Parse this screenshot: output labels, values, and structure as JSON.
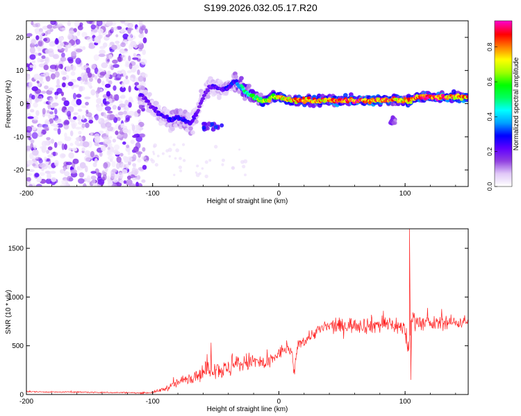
{
  "title": "S199.2026.032.05.17.R20",
  "chart_data": [
    {
      "type": "heatmap",
      "xlabel": "Height of straight line (km)",
      "ylabel": "Frequency (Hz)",
      "xlim": [
        -200,
        150
      ],
      "ylim": [
        -25,
        25
      ],
      "x_ticks": [
        -200,
        -100,
        0,
        100
      ],
      "x_tick_labels": [
        "-200",
        "-100",
        "0",
        "100"
      ],
      "y_ticks": [
        -20,
        -10,
        0,
        10,
        20
      ],
      "y_tick_labels": [
        "-20",
        "-10",
        "0",
        "10",
        "20"
      ],
      "colorbar": {
        "label": "Normalized spectral amplitude",
        "range": [
          0,
          0.95
        ],
        "ticks": [
          0.0,
          0.2,
          0.4,
          0.6,
          0.8
        ],
        "tick_labels": [
          "0.0",
          "0.2",
          "0.4",
          "0.6",
          "0.8"
        ],
        "colors": [
          "#ffffff",
          "#e0c8f8",
          "#9040e0",
          "#6000ff",
          "#0000ff",
          "#00a0ff",
          "#00ffff",
          "#00ff60",
          "#00ff00",
          "#a0ff00",
          "#ffff00",
          "#ff8000",
          "#ff0000",
          "#ff00c0"
        ]
      },
      "noise_region": {
        "x_range": [
          -200,
          -105
        ],
        "freq_range": [
          -25,
          25
        ],
        "amplitude": "low (0.05-0.2)"
      },
      "trace": {
        "x": [
          -110,
          -105,
          -100,
          -95,
          -90,
          -85,
          -80,
          -75,
          -70,
          -65,
          -60,
          -55,
          -50,
          -45,
          -40,
          -35,
          -30,
          -25,
          -20,
          -15,
          -10,
          -5,
          0,
          10,
          20,
          30,
          40,
          50,
          60,
          70,
          80,
          90,
          95,
          100,
          105,
          110,
          120,
          130,
          140,
          150
        ],
        "frequency": [
          3,
          1,
          -1,
          -3,
          -4,
          -5,
          -4,
          -5,
          -6,
          -3,
          2,
          5,
          5,
          4,
          5,
          7,
          5,
          3,
          2,
          1,
          1,
          2,
          2,
          1,
          1,
          1,
          1,
          1,
          1,
          1,
          1,
          1,
          1,
          1,
          1,
          2,
          2,
          2,
          2,
          2
        ],
        "amplitude": [
          0.25,
          0.2,
          0.2,
          0.22,
          0.25,
          0.28,
          0.28,
          0.3,
          0.25,
          0.22,
          0.2,
          0.22,
          0.25,
          0.22,
          0.28,
          0.3,
          0.45,
          0.55,
          0.6,
          0.65,
          0.7,
          0.75,
          0.75,
          0.8,
          0.85,
          0.85,
          0.85,
          0.9,
          0.9,
          0.88,
          0.88,
          0.85,
          0.8,
          0.8,
          0.85,
          0.9,
          0.9,
          0.9,
          0.85,
          0.85
        ]
      },
      "side_features": [
        {
          "x_range": [
            -60,
            -45
          ],
          "freq": [
            -8,
            -6
          ],
          "amplitude": 0.3
        },
        {
          "x_range": [
            88,
            92
          ],
          "freq": [
            -6,
            -4
          ],
          "amplitude": 0.2
        }
      ]
    },
    {
      "type": "line",
      "xlabel": "Height of straight line (km)",
      "ylabel": "SNR (10 * v/v)",
      "xlim": [
        -200,
        150
      ],
      "ylim": [
        0,
        1700
      ],
      "x_ticks": [
        -200,
        -100,
        0,
        100
      ],
      "x_tick_labels": [
        "-200",
        "-100",
        "0",
        "100"
      ],
      "y_ticks": [
        0,
        500,
        1000,
        1500
      ],
      "y_tick_labels": [
        "0",
        "500",
        "1000",
        "1500"
      ],
      "series": [
        {
          "name": "SNR",
          "color": "#ff2020",
          "x": [
            -200,
            -180,
            -160,
            -140,
            -120,
            -110,
            -100,
            -95,
            -90,
            -85,
            -80,
            -75,
            -70,
            -65,
            -60,
            -55,
            -50,
            -45,
            -40,
            -35,
            -30,
            -25,
            -20,
            -15,
            -10,
            -5,
            0,
            5,
            10,
            12,
            15,
            20,
            25,
            30,
            35,
            40,
            50,
            60,
            70,
            80,
            90,
            95,
            100,
            103,
            105,
            110,
            120,
            130,
            140,
            150
          ],
          "values": [
            30,
            25,
            25,
            20,
            20,
            15,
            20,
            40,
            60,
            90,
            120,
            150,
            180,
            200,
            230,
            260,
            280,
            250,
            260,
            300,
            320,
            330,
            340,
            330,
            300,
            360,
            420,
            470,
            450,
            200,
            520,
            550,
            600,
            650,
            680,
            700,
            700,
            720,
            710,
            720,
            720,
            700,
            650,
            450,
            800,
            750,
            720,
            740,
            740,
            750
          ],
          "noise_amplitude": [
            10,
            10,
            10,
            10,
            10,
            10,
            15,
            30,
            40,
            60,
            80,
            90,
            100,
            110,
            140,
            150,
            160,
            150,
            150,
            160,
            160,
            150,
            150,
            140,
            130,
            120,
            110,
            100,
            90,
            80,
            90,
            90,
            100,
            100,
            110,
            120,
            130,
            130,
            140,
            150,
            150,
            150,
            150,
            200,
            150,
            140,
            120,
            110,
            110,
            100
          ],
          "spikes": [
            {
              "x": 103.5,
              "value": 1700
            },
            {
              "x": 104.5,
              "value": 150
            }
          ]
        }
      ]
    }
  ]
}
